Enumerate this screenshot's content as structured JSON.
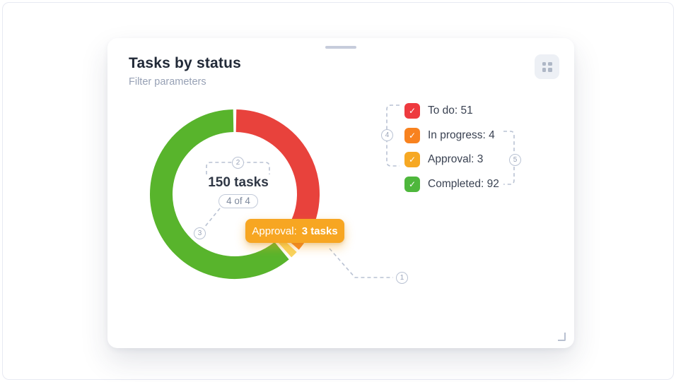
{
  "card": {
    "title": "Tasks by status",
    "subtitle": "Filter parameters"
  },
  "chart_data": {
    "type": "pie",
    "donut": true,
    "title": "Tasks by status",
    "categories": [
      "To do",
      "In progress",
      "Approval",
      "Completed"
    ],
    "values": [
      51,
      4,
      3,
      92
    ],
    "colors": [
      "#e8423c",
      "#f5821f",
      "#f9d45e",
      "#58b42c"
    ],
    "total": 150,
    "total_label": "150 tasks",
    "progress_label": "4 of 4",
    "legend_position": "right",
    "start_angle_deg": 0,
    "direction": "clockwise"
  },
  "legend": {
    "items": [
      {
        "label": "To do: 51",
        "color": "#ee3a3f"
      },
      {
        "label": "In progress: 4",
        "color": "#f8821f"
      },
      {
        "label": "Approval: 3",
        "color": "#f6a823"
      },
      {
        "label": "Completed: 92",
        "color": "#4eb73c"
      }
    ]
  },
  "tooltip": {
    "label": "Approval:",
    "value": "3 tasks",
    "bg": "#f7a622"
  },
  "annotations": {
    "n1": "1",
    "n2": "2",
    "n3": "3",
    "n4": "4",
    "n5": "5"
  },
  "icons": {
    "check": "✓"
  }
}
